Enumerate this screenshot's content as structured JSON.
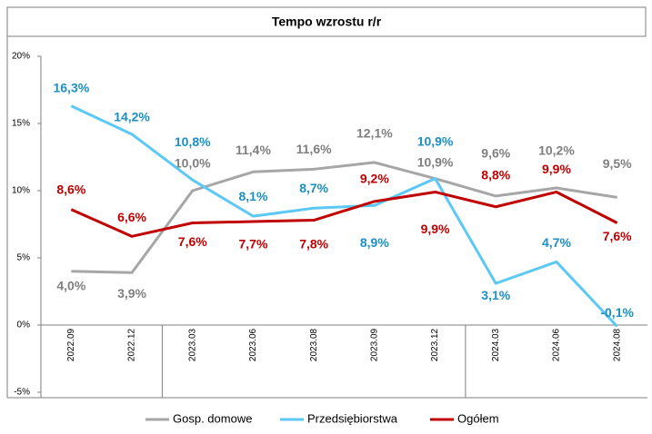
{
  "chart_data": {
    "type": "line",
    "title": "Tempo wzrostu r/r",
    "categories": [
      "2022.09",
      "2022.12",
      "2023.03",
      "2023.06",
      "2023.08",
      "2023.09",
      "2023.12",
      "2024.03",
      "2024.06",
      "2024.08"
    ],
    "series": [
      {
        "name": "Gosp. domowe",
        "color": "#a6a6a6",
        "label_color": "#7f7f7f",
        "values": [
          4.0,
          3.9,
          10.0,
          11.4,
          11.6,
          12.1,
          10.9,
          9.6,
          10.2,
          9.5
        ],
        "value_labels": [
          "4,0%",
          "3,9%",
          "10,0%",
          "11,4%",
          "11,6%",
          "12,1%",
          "10,9%",
          "9,6%",
          "10,2%",
          "9,5%"
        ]
      },
      {
        "name": "Przedsiębiorstwa",
        "color": "#5bc8f5",
        "label_color": "#1b8fc4",
        "values": [
          16.3,
          14.2,
          10.8,
          8.1,
          8.7,
          8.9,
          10.9,
          3.1,
          4.7,
          -0.1
        ],
        "value_labels": [
          "16,3%",
          "14,2%",
          "10,8%",
          "8,1%",
          "8,7%",
          "8,9%",
          "10,9%",
          "3,1%",
          "4,7%",
          "-0,1%"
        ]
      },
      {
        "name": "Ogółem",
        "color": "#c00000",
        "label_color": "#c00000",
        "values": [
          8.6,
          6.6,
          7.6,
          7.7,
          7.8,
          9.2,
          9.9,
          8.8,
          9.9,
          7.6
        ],
        "value_labels": [
          "8,6%",
          "6,6%",
          "7,6%",
          "7,7%",
          "7,8%",
          "9,2%",
          "9,9%",
          "8,8%",
          "9,9%",
          "7,6%"
        ]
      }
    ],
    "ylim": [
      -5,
      20
    ],
    "yticks": [
      {
        "value": -5,
        "label": "-5%"
      },
      {
        "value": 0,
        "label": "0%"
      },
      {
        "value": 5,
        "label": "5%"
      },
      {
        "value": 10,
        "label": "10%"
      },
      {
        "value": 15,
        "label": "15%"
      },
      {
        "value": 20,
        "label": "20%"
      }
    ],
    "grid": false,
    "legend": "bottom"
  }
}
